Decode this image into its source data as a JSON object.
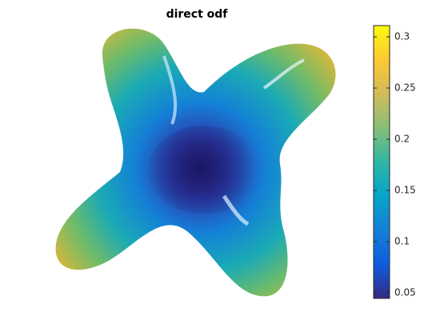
{
  "chart_data": {
    "type": "surface",
    "title": "direct odf",
    "colormap": [
      "#352a87",
      "#0f5cdd",
      "#1481d6",
      "#06a4ca",
      "#2eb7a4",
      "#87bf77",
      "#d1bb59",
      "#fec832",
      "#f9fb0e"
    ],
    "clim": [
      0.0445,
      0.311
    ],
    "cticks": [
      0.05,
      0.1,
      0.15,
      0.2,
      0.25,
      0.3
    ]
  }
}
